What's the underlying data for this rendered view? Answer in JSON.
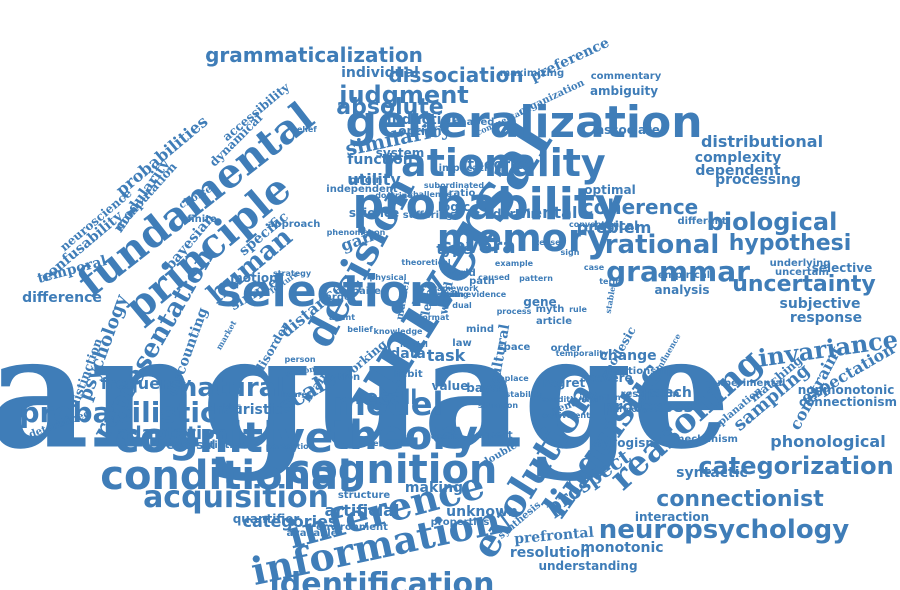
{
  "style": {
    "word_color": "#3f7db8",
    "background": "#ffffff"
  },
  "words": [
    "language",
    "universal",
    "generalization",
    "selection",
    "probability",
    "cognitive",
    "decision",
    "rationality",
    "memory",
    "theory",
    "fundamental",
    "principle",
    "conditional",
    "cognition",
    "evolution",
    "inference",
    "information",
    "linguistic",
    "identification",
    "probabilistic",
    "model",
    "reasoning",
    "grammar",
    "acquisition",
    "neuropsychology",
    "categorization",
    "rational",
    "biological",
    "representation",
    "human",
    "natural",
    "invariance",
    "uncertainty",
    "hypothesi",
    "connectionist",
    "grammaticalization",
    "judgment",
    "absolute",
    "similarity",
    "adaptation",
    "scale",
    "recall",
    "severa",
    "coherence",
    "distributional",
    "complexity",
    "dependent",
    "processing",
    "problem",
    "mental",
    "task",
    "gain",
    "distance",
    "phonological",
    "sampling",
    "expectation",
    "constraint",
    "subjective",
    "response",
    "selective",
    "nonmonotonic",
    "connectionism",
    "matching",
    "processes",
    "speech",
    "change",
    "prospect",
    "resolution",
    "understanding",
    "monotonic",
    "prefrontal",
    "syntactic",
    "interaction",
    "categories",
    "unknown",
    "artificial",
    "making",
    "quantifier",
    "frequency",
    "heuristic",
    "discounting",
    "psychology",
    "temporal",
    "difference",
    "confusability",
    "neuroscience",
    "computation",
    "probabilities",
    "modularity",
    "dynamical",
    "accessibility",
    "bayesian",
    "specific",
    "individual",
    "dissociation",
    "preference",
    "commentary",
    "ambiguity",
    "associate",
    "optimal",
    "theories",
    "utility",
    "function",
    "science",
    "darwin",
    "logical",
    "type",
    "analysis",
    "motion",
    "simple",
    "disorder",
    "brain",
    "reversal",
    "utilities",
    "network",
    "genetic",
    "aspect",
    "double",
    "bayes",
    "value",
    "regret",
    "cultural",
    "geodesic",
    "syllogism",
    "mechanism",
    "explanation",
    "severe",
    "gene",
    "logic",
    "system",
    "induction",
    "option",
    "maximizing",
    "organization",
    "commentator",
    "distinction",
    "determined",
    "experimental",
    "underlying",
    "uncertain",
    "empirical",
    "different",
    "environment",
    "available",
    "structure",
    "properties",
    "synthesis",
    "working",
    "data",
    "habit",
    "notion",
    "paired",
    "world",
    "path",
    "mind",
    "law",
    "myth",
    "article",
    "space",
    "target",
    "marker",
    "level",
    "word",
    "order",
    "choice",
    "finite",
    "approach",
    "strategy",
    "feature",
    "suffering",
    "origin",
    "ratio",
    "independent",
    "shaped",
    "belief",
    "bias",
    "perception",
    "general",
    "relationship",
    "restriction",
    "harmony",
    "doctrine",
    "challenge",
    "implication",
    "subordinated",
    "convention",
    "influence",
    "equivalent",
    "replace",
    "temporality",
    "conditioning",
    "situation",
    "stable",
    "market",
    "person",
    "hearer",
    "reason",
    "phenomenon",
    "physical",
    "theoretical",
    "framework",
    "caused",
    "example",
    "tense",
    "sign",
    "case",
    "term",
    "knowledge",
    "stability",
    "format",
    "evidence",
    "pattern",
    "rule",
    "belief",
    "agent",
    "intention",
    "dual",
    "process",
    "model",
    "field",
    "unit",
    "action",
    "learning",
    "verb"
  ]
}
